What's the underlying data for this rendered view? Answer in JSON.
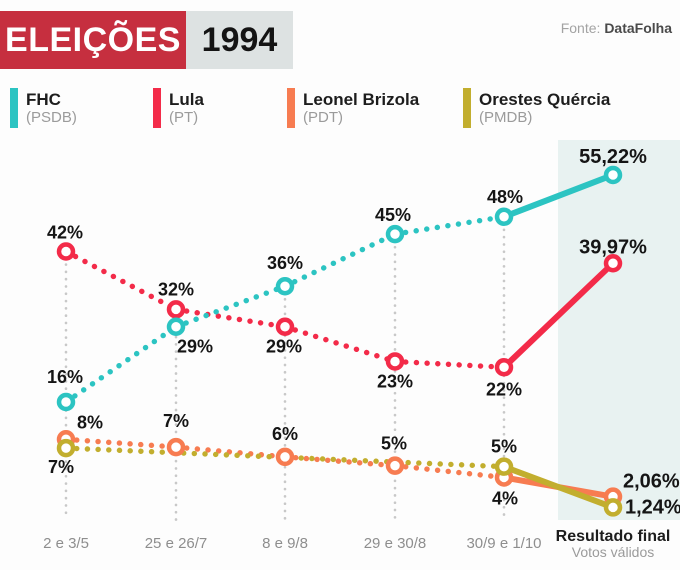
{
  "header": {
    "title": "ELEIÇÕES",
    "year": "1994",
    "source_prefix": "Fonte:",
    "source_name": "DataFolha"
  },
  "legend": [
    {
      "name": "FHC",
      "party": "(PSDB)",
      "color": "#2cc4c2"
    },
    {
      "name": "Lula",
      "party": "(PT)",
      "color": "#f32b49"
    },
    {
      "name": "Leonel Brizola",
      "party": "(PDT)",
      "color": "#f77c51"
    },
    {
      "name": "Orestes Quércia",
      "party": "(PMDB)",
      "color": "#c2ae2e"
    }
  ],
  "chart_data": {
    "type": "line",
    "categories": [
      "2 e 3/5",
      "25 e 26/7",
      "8 e 9/8",
      "29 e 30/8",
      "30/9 e 1/10"
    ],
    "final_category": {
      "label": "Resultado final",
      "sublabel": "Votos válidos"
    },
    "series": [
      {
        "name": "FHC",
        "party": "PSDB",
        "color": "#2cc4c2",
        "values": [
          16,
          29,
          36,
          45,
          48
        ],
        "final": 55.22,
        "labels": [
          "16%",
          "29%",
          "36%",
          "45%",
          "48%"
        ],
        "final_label": "55,22%"
      },
      {
        "name": "Lula",
        "party": "PT",
        "color": "#f32b49",
        "values": [
          42,
          32,
          29,
          23,
          22
        ],
        "final": 39.97,
        "labels": [
          "42%",
          "32%",
          "29%",
          "23%",
          "22%"
        ],
        "final_label": "39,97%"
      },
      {
        "name": "Leonel Brizola",
        "party": "PDT",
        "color": "#f77c51",
        "values": [
          8,
          7,
          6,
          5,
          4
        ],
        "final": 2.06,
        "labels": [
          "8%",
          "7%",
          "6%",
          "5%",
          "4%"
        ],
        "final_label": "2,06%"
      },
      {
        "name": "Orestes Quércia",
        "party": "PMDB",
        "color": "#c2ae2e",
        "values": [
          7,
          null,
          null,
          null,
          5
        ],
        "final": 1.24,
        "labels": [
          "7%",
          null,
          null,
          null,
          "5%"
        ],
        "final_label": "1,24%"
      }
    ],
    "ylim": [
      0,
      60
    ],
    "grid": "dotted-vertical",
    "legend_position": "top",
    "line_style": "dotted-for-polls-solid-for-final",
    "final_band_color": "#e8f2f1",
    "grid_color": "#c8c8c8",
    "label_color": "#151515",
    "axis_label_color": "#8e8e8e"
  }
}
